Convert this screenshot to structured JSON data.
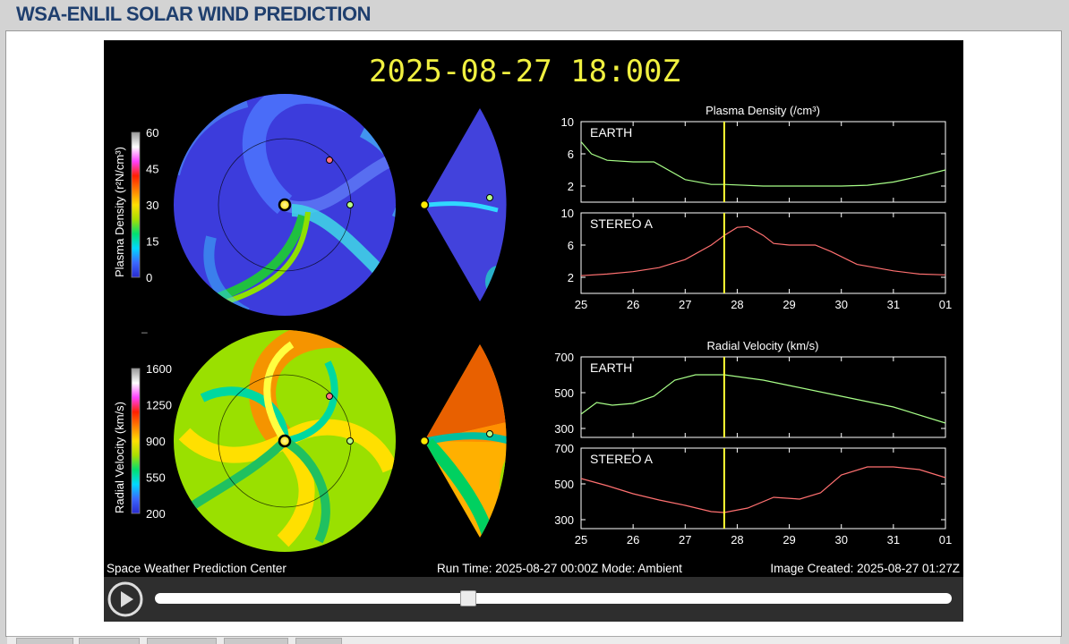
{
  "header": {
    "title": "WSA-ENLIL SOLAR WIND PREDICTION"
  },
  "frame": {
    "timestamp": "2025-08-27 18:00Z",
    "footer_left": "Space Weather Prediction Center",
    "footer_center": "Run Time: 2025-08-27 00:00Z  Mode: Ambient",
    "footer_right": "Image Created: 2025-08-27 01:27Z"
  },
  "colorbars": {
    "density": {
      "label": "Plasma Density (r²N/cm³)",
      "ticks": [
        "60",
        "45",
        "30",
        "15",
        "0"
      ]
    },
    "velocity": {
      "label": "Radial Velocity (km/s)",
      "ticks": [
        "1600",
        "1250",
        "900",
        "550",
        "200"
      ]
    },
    "gradient_colors": [
      "#2a2ad0",
      "#3a68ff",
      "#00d8ff",
      "#00e070",
      "#a8e000",
      "#ffe000",
      "#ff8000",
      "#ff2000",
      "#ff40ff",
      "#ffffff",
      "#9a9a9a"
    ]
  },
  "plots": {
    "density_title": "Plasma Density (/cm³)",
    "velocity_title": "Radial Velocity (km/s)",
    "x_ticks": [
      "25",
      "26",
      "27",
      "28",
      "29",
      "30",
      "31",
      "01"
    ],
    "density_y_ticks": [
      "10",
      "6",
      "2"
    ],
    "velocity_y_ticks": [
      "700",
      "500",
      "300"
    ],
    "earth_label": "EARTH",
    "stereo_label": "STEREO A",
    "earth_color": "#a8ff88",
    "stereo_color": "#ff7070",
    "marker_color": "#ffff33",
    "current_time_day": 27.75
  },
  "chart_data": [
    {
      "type": "line",
      "title": "Plasma Density (/cm³)",
      "series": [
        {
          "name": "EARTH",
          "x": [
            25,
            25.2,
            25.5,
            26,
            26.4,
            27,
            27.5,
            27.75,
            28.5,
            29,
            30,
            30.5,
            31,
            31.5,
            32
          ],
          "values": [
            7.5,
            6,
            5.2,
            5,
            5,
            2.8,
            2.2,
            2.2,
            2,
            2,
            2,
            2.1,
            2.5,
            3.2,
            4
          ]
        }
      ],
      "ylim": [
        0,
        10
      ]
    },
    {
      "type": "line",
      "title": "Plasma Density (/cm³)",
      "series": [
        {
          "name": "STEREO A",
          "x": [
            25,
            25.5,
            26,
            26.5,
            27,
            27.5,
            27.75,
            28,
            28.2,
            28.5,
            28.7,
            29,
            29.5,
            29.8,
            30.3,
            31,
            31.5,
            32
          ],
          "values": [
            2.2,
            2.4,
            2.7,
            3.2,
            4.2,
            6,
            7.2,
            8.2,
            8.3,
            7.2,
            6.2,
            6,
            6,
            5.2,
            3.6,
            2.8,
            2.4,
            2.3
          ]
        }
      ],
      "ylim": [
        0,
        10
      ]
    },
    {
      "type": "line",
      "title": "Radial Velocity (km/s)",
      "series": [
        {
          "name": "EARTH",
          "x": [
            25,
            25.3,
            25.6,
            26,
            26.4,
            26.8,
            27.2,
            27.75,
            28.5,
            29,
            30,
            31,
            32
          ],
          "values": [
            380,
            445,
            430,
            440,
            480,
            570,
            600,
            600,
            570,
            540,
            480,
            420,
            330
          ]
        }
      ],
      "ylim": [
        250,
        700
      ]
    },
    {
      "type": "line",
      "title": "Radial Velocity (km/s)",
      "series": [
        {
          "name": "STEREO A",
          "x": [
            25,
            25.5,
            26,
            26.5,
            27,
            27.5,
            27.75,
            28.2,
            28.7,
            29.2,
            29.6,
            30,
            30.5,
            31,
            31.5,
            32
          ],
          "values": [
            530,
            490,
            445,
            410,
            380,
            345,
            340,
            365,
            425,
            415,
            450,
            550,
            595,
            595,
            580,
            535
          ]
        }
      ],
      "ylim": [
        250,
        700
      ]
    }
  ],
  "player": {
    "progress": 0.392
  }
}
